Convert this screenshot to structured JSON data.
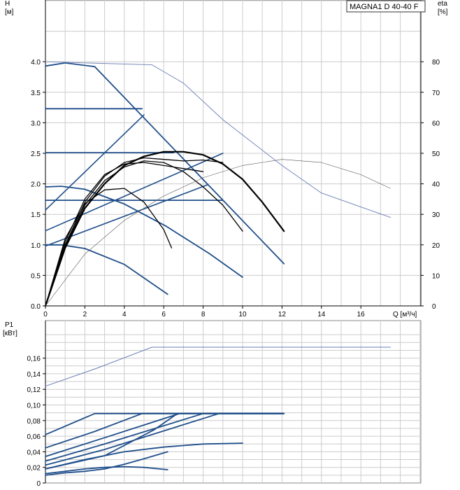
{
  "chart_data": [
    {
      "type": "line",
      "title": "MAGNA1 D 40-40 F",
      "xlabel": "Q [м³/ч]",
      "ylabel": "H [м]",
      "ylabel2": "eta [%]",
      "xlim": [
        0,
        19
      ],
      "ylim": [
        0,
        4.0
      ],
      "y2lim": [
        0,
        80
      ],
      "x_ticks": [
        "0",
        "2",
        "4",
        "6",
        "8",
        "10",
        "12",
        "14",
        "16"
      ],
      "y_ticks": [
        "0.0",
        "0.5",
        "1.0",
        "1.5",
        "2.0",
        "2.5",
        "3.0",
        "3.5",
        "4.0"
      ],
      "y2_ticks": [
        "0",
        "10",
        "20",
        "30",
        "40",
        "50",
        "60",
        "70",
        "80"
      ],
      "grid": true,
      "head_curves": [
        {
          "x": [
            0,
            1,
            2.5,
            12.1
          ],
          "y": [
            3.93,
            3.98,
            3.92,
            0.69
          ]
        },
        {
          "x": [
            0,
            4.9
          ],
          "y": [
            3.23,
            3.23
          ]
        },
        {
          "x": [
            0,
            6.5
          ],
          "y": [
            2.51,
            2.51
          ]
        },
        {
          "x": [
            0,
            9.0
          ],
          "y": [
            1.73,
            1.73
          ]
        },
        {
          "x": [
            0,
            0.8,
            2,
            4,
            6.1,
            8.3,
            10.0
          ],
          "y": [
            1.95,
            1.96,
            1.91,
            1.67,
            1.31,
            0.86,
            0.47
          ]
        },
        {
          "x": [
            0,
            0.8,
            2,
            4,
            6.2
          ],
          "y": [
            1.0,
            1.0,
            0.94,
            0.68,
            0.19
          ]
        }
      ],
      "control_lines": [
        {
          "x": [
            0,
            5.0
          ],
          "y": [
            1.57,
            3.13
          ]
        },
        {
          "x": [
            0,
            9.0
          ],
          "y": [
            1.23,
            2.5
          ]
        },
        {
          "x": [
            0,
            8.2
          ],
          "y": [
            0.98,
            1.98
          ]
        }
      ],
      "max_eta_curve": {
        "x": [
          0,
          5.4,
          7.0,
          9.0,
          12.0,
          14.0,
          17.5
        ],
        "y": [
          80,
          79,
          73,
          61,
          46,
          37,
          29
        ]
      },
      "eta_curves": [
        {
          "x": [
            0,
            1,
            2,
            3,
            4,
            5,
            6,
            7,
            8,
            9,
            10,
            11,
            12.1
          ],
          "y": [
            0,
            19,
            32,
            40,
            46,
            49,
            50.5,
            50.5,
            49.5,
            46.5,
            41.5,
            34,
            24.5
          ]
        },
        {
          "x": [
            0,
            1,
            2,
            3,
            4,
            5,
            6,
            7,
            8,
            9,
            10
          ],
          "y": [
            0,
            19.5,
            33,
            41,
            45.5,
            47.5,
            47,
            44,
            39,
            33,
            24.5
          ]
        },
        {
          "x": [
            0,
            1,
            2,
            3,
            4,
            5,
            6,
            7,
            8,
            9
          ],
          "y": [
            0,
            20,
            34,
            42.5,
            47,
            48.5,
            48,
            47.5,
            47.8,
            47
          ]
        },
        {
          "x": [
            0,
            1,
            2,
            3,
            4,
            5,
            6,
            7,
            8
          ],
          "y": [
            0,
            21,
            35,
            43,
            46.5,
            47,
            46,
            45,
            44
          ]
        },
        {
          "x": [
            0,
            1,
            2,
            3,
            4,
            5,
            6,
            6.4
          ],
          "y": [
            0,
            22,
            33.5,
            38,
            38.5,
            34,
            25,
            19
          ]
        },
        {
          "x": [
            0,
            2,
            4,
            6,
            8,
            10,
            12,
            14,
            16,
            17.5
          ],
          "y": [
            0,
            17,
            28,
            36,
            42,
            46,
            48,
            47,
            43,
            38.5
          ]
        }
      ]
    },
    {
      "type": "line",
      "ylabel": "P1 [кВт]",
      "xlim": [
        0,
        19
      ],
      "ylim": [
        0,
        0.18
      ],
      "y_ticks": [
        "0",
        "0,02",
        "0,04",
        "0,06",
        "0,08",
        "0,10",
        "0,12",
        "0,14",
        "0,16"
      ],
      "grid": true,
      "power_curves": [
        {
          "x": [
            0,
            2.6,
            5.4,
            17.5
          ],
          "y": [
            0.124,
            0.147,
            0.174,
            0.174
          ]
        },
        {
          "x": [
            0,
            2.5,
            12.1
          ],
          "y": [
            0.062,
            0.089,
            0.089
          ]
        },
        {
          "x": [
            0,
            2.5,
            4.9,
            12.1
          ],
          "y": [
            0.045,
            0.066,
            0.089,
            0.089
          ]
        },
        {
          "x": [
            0,
            3,
            6.8,
            12.1
          ],
          "y": [
            0.034,
            0.058,
            0.089,
            0.089
          ]
        },
        {
          "x": [
            0,
            3,
            8,
            12.1
          ],
          "y": [
            0.028,
            0.05,
            0.089,
            0.089
          ]
        },
        {
          "x": [
            0,
            3,
            8.8,
            12.1
          ],
          "y": [
            0.023,
            0.043,
            0.089,
            0.089
          ]
        },
        {
          "x": [
            0,
            3,
            5.5,
            6.7
          ],
          "y": [
            0.018,
            0.035,
            0.068,
            0.089
          ]
        },
        {
          "x": [
            0,
            2,
            4,
            6,
            8,
            10
          ],
          "y": [
            0.018,
            0.03,
            0.04,
            0.046,
            0.05,
            0.051
          ]
        },
        {
          "x": [
            0,
            1,
            2,
            3,
            4,
            5,
            6.2
          ],
          "y": [
            0.012,
            0.015,
            0.018,
            0.02,
            0.021,
            0.02,
            0.017
          ]
        },
        {
          "x": [
            0,
            1,
            2,
            3,
            4,
            5,
            6.2
          ],
          "y": [
            0.01,
            0.013,
            0.015,
            0.018,
            0.024,
            0.031,
            0.04
          ]
        }
      ]
    }
  ]
}
